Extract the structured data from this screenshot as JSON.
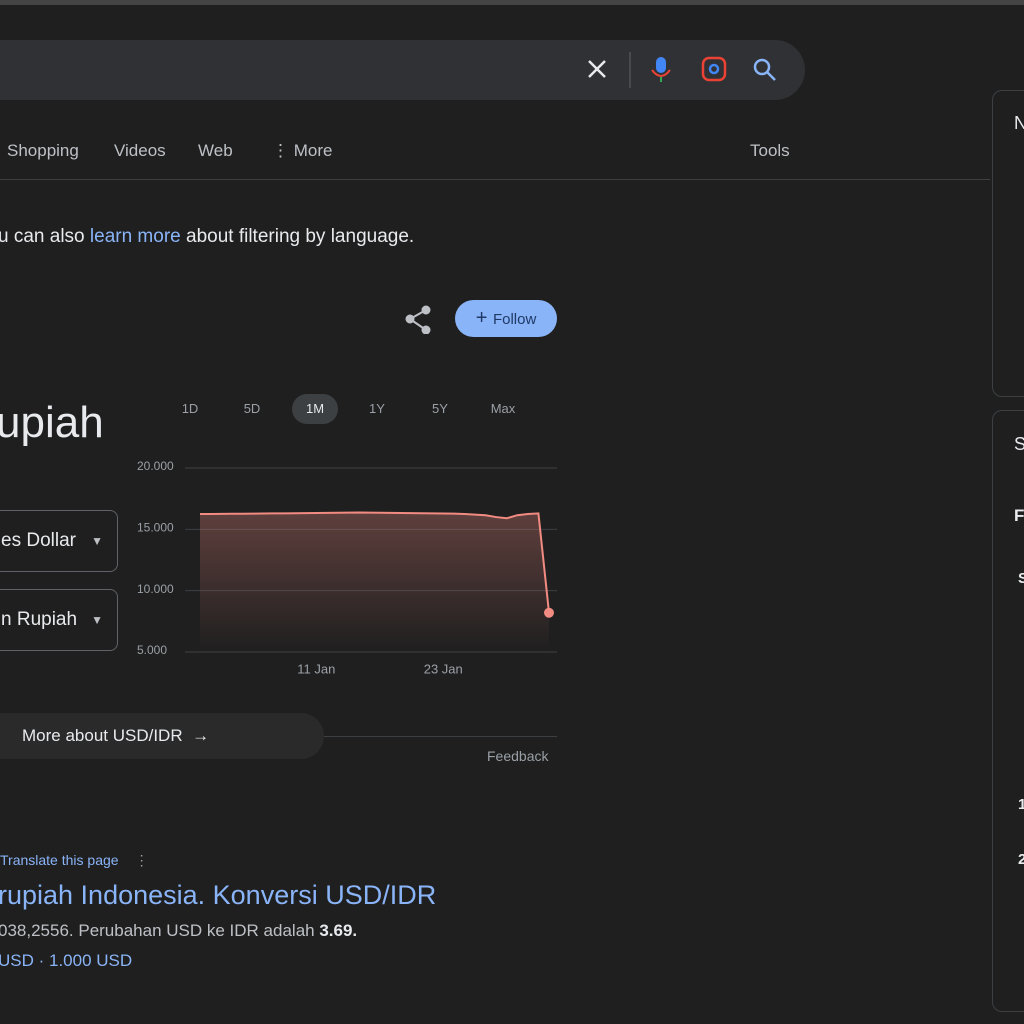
{
  "search": {
    "tabs": [
      "Shopping",
      "Videos",
      "Web",
      "More"
    ],
    "tools": "Tools"
  },
  "notice": {
    "before": "u can also",
    "link": "learn more",
    "after": "about filtering by language."
  },
  "follow": "Follow",
  "converter": {
    "title": "upiah",
    "from": "es Dollar",
    "to": "n Rupiah",
    "more": "More about USD/IDR",
    "feedback": "Feedback"
  },
  "periods": {
    "options": [
      "1D",
      "5D",
      "1M",
      "1Y",
      "5Y",
      "Max"
    ],
    "selected": "1M"
  },
  "chart_data": {
    "type": "line",
    "categories": [
      null,
      null,
      null,
      null,
      null,
      null,
      null,
      null,
      null,
      null,
      null,
      "11 Jan",
      null,
      null,
      null,
      null,
      null,
      null,
      null,
      null,
      null,
      null,
      null,
      "23 Jan",
      null,
      null,
      null,
      null,
      null,
      null,
      null,
      null,
      null,
      null
    ],
    "series": [
      {
        "color": "#f28b82",
        "values": [
          16250,
          16250,
          16260,
          16270,
          16270,
          16280,
          16290,
          16300,
          16300,
          16310,
          16320,
          16330,
          16340,
          16350,
          16360,
          16370,
          16360,
          16350,
          16340,
          16330,
          16320,
          16310,
          16300,
          16290,
          16280,
          16250,
          16200,
          16150,
          16000,
          15900,
          16150,
          16250,
          16300,
          8200
        ]
      }
    ],
    "ylim": [
      5000,
      20000
    ],
    "yticks": [
      {
        "value": 20000,
        "label": "20.000"
      },
      {
        "value": 15000,
        "label": "15.000"
      },
      {
        "value": 10000,
        "label": "10.000"
      },
      {
        "value": 5000,
        "label": "5.000"
      }
    ],
    "grid": true
  },
  "result": {
    "translate": "Translate this page",
    "title": "rupiah Indonesia. Konversi USD/IDR",
    "snippet": "038,2556. Perubahan USD ke IDR adalah",
    "snippet_bold": "3.69.",
    "links": "USD · 1.000 USD"
  },
  "side": {
    "panel1": "N",
    "panel2": "S",
    "row1": "F",
    "row2": "S",
    "row3": "1",
    "row4": "2"
  }
}
